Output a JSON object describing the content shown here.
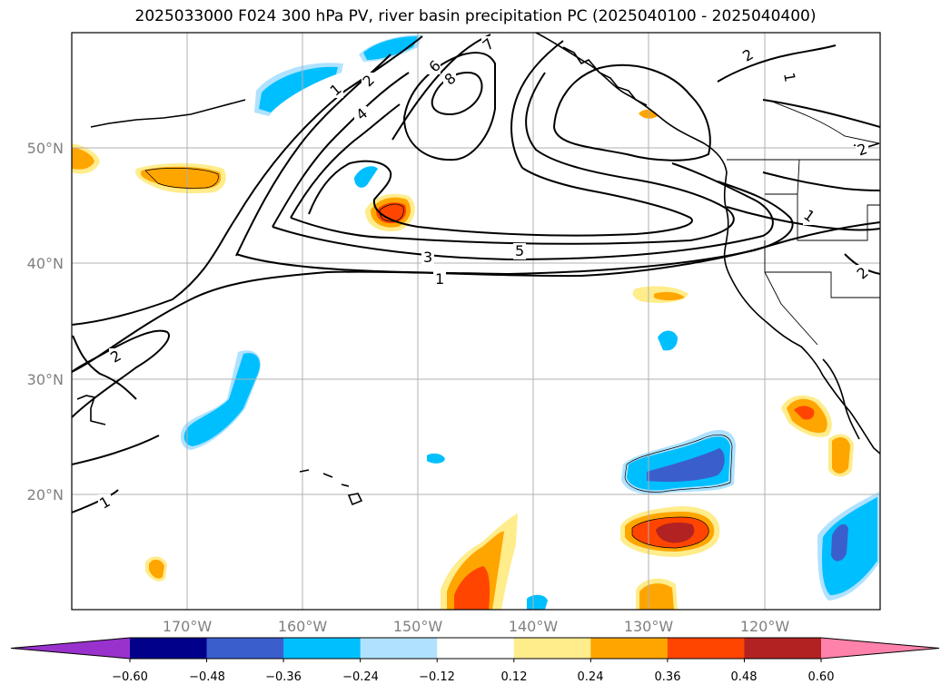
{
  "title": "2025033000 F024 300 hPa PV, river basin precipitation PC (2025040100 - 2025040400)",
  "lat_labels": [
    "50°N",
    "40°N",
    "30°N",
    "20°N"
  ],
  "lon_labels": [
    "170°W",
    "160°W",
    "150°W",
    "140°W",
    "130°W",
    "120°W"
  ],
  "contour_labels": [
    "1",
    "2",
    "4",
    "6",
    "8",
    "7",
    "2",
    "1",
    "1",
    "2",
    "3",
    "5",
    "1",
    "2",
    "1",
    "2"
  ],
  "colorbar": {
    "tick_labels": [
      "−0.60",
      "−0.48",
      "−0.36",
      "−0.24",
      "−0.12",
      "0.12",
      "0.24",
      "0.36",
      "0.48",
      "0.60"
    ],
    "colors": [
      "#9932cc",
      "#00008b",
      "#3a5fcd",
      "#00bfff",
      "#b0e2ff",
      "#ffffff",
      "#ffec8b",
      "#ffa500",
      "#ff4500",
      "#b22222",
      "#ff82ab"
    ]
  }
}
